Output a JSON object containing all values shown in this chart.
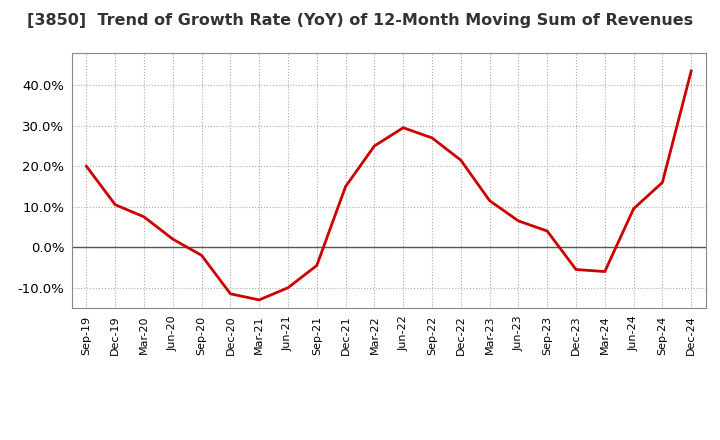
{
  "title": "[3850]  Trend of Growth Rate (YoY) of 12-Month Moving Sum of Revenues",
  "line_color": "#cc0000",
  "line_width": 2.0,
  "background_color": "#ffffff",
  "grid_color": "#aaaaaa",
  "zero_line_color": "#555555",
  "ylim": [
    -0.15,
    0.48
  ],
  "yticks": [
    -0.1,
    0.0,
    0.1,
    0.2,
    0.3,
    0.4
  ],
  "x_labels": [
    "Sep-19",
    "Dec-19",
    "Mar-20",
    "Jun-20",
    "Sep-20",
    "Dec-20",
    "Mar-21",
    "Jun-21",
    "Sep-21",
    "Dec-21",
    "Mar-22",
    "Jun-22",
    "Sep-22",
    "Dec-22",
    "Mar-23",
    "Jun-23",
    "Sep-23",
    "Dec-23",
    "Mar-24",
    "Jun-24",
    "Sep-24",
    "Dec-24"
  ],
  "values": [
    0.2,
    0.105,
    0.075,
    0.02,
    -0.02,
    -0.115,
    -0.13,
    -0.1,
    -0.045,
    0.15,
    0.25,
    0.295,
    0.27,
    0.215,
    0.115,
    0.065,
    0.04,
    -0.055,
    -0.06,
    0.095,
    0.16,
    0.435
  ],
  "title_fontsize": 11.5,
  "ytick_fontsize": 9.5,
  "xtick_fontsize": 8.0
}
